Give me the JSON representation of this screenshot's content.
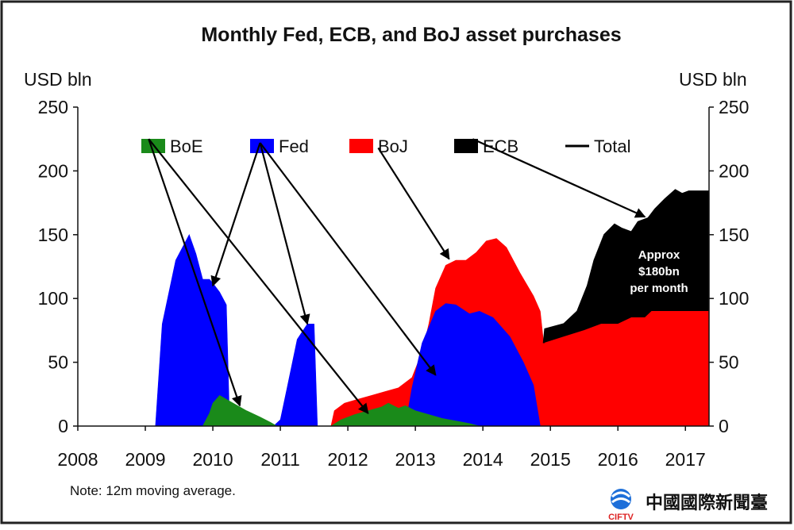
{
  "chart_data": {
    "type": "area",
    "title": "Monthly Fed, ECB, and BoJ asset purchases",
    "ylabel_left": "USD bln",
    "ylabel_right": "USD bln",
    "note": "Note: 12m moving average.",
    "ylim": [
      0,
      250
    ],
    "xlim": [
      2008,
      2017.35
    ],
    "x_ticks": [
      "2008",
      "2009",
      "2010",
      "2011",
      "2012",
      "2013",
      "2014",
      "2015",
      "2016",
      "2017"
    ],
    "y_ticks": [
      "0",
      "50",
      "100",
      "150",
      "200",
      "250"
    ],
    "grid": false,
    "legend_position": "top",
    "legend": [
      {
        "name": "BoE",
        "color": "#1a8a1a",
        "kind": "box"
      },
      {
        "name": "Fed",
        "color": "#0000ff",
        "kind": "box"
      },
      {
        "name": "BoJ",
        "color": "#ff0000",
        "kind": "box"
      },
      {
        "name": "ECB",
        "color": "#000000",
        "kind": "box"
      },
      {
        "name": "Total",
        "color": "#000000",
        "kind": "line"
      }
    ],
    "annotation": [
      "Approx",
      "$180bn",
      "per month"
    ],
    "series": [
      {
        "name": "BoE",
        "color": "#1a8a1a",
        "points": [
          [
            2009.85,
            0
          ],
          [
            2009.95,
            10
          ],
          [
            2010.0,
            18
          ],
          [
            2010.1,
            24
          ],
          [
            2010.3,
            18
          ],
          [
            2010.5,
            12
          ],
          [
            2010.7,
            7
          ],
          [
            2010.85,
            3
          ],
          [
            2010.95,
            0
          ],
          [
            2011.75,
            0
          ],
          [
            2011.9,
            5
          ],
          [
            2012.1,
            9
          ],
          [
            2012.3,
            12
          ],
          [
            2012.5,
            15
          ],
          [
            2012.6,
            18
          ],
          [
            2012.75,
            14
          ],
          [
            2012.85,
            16
          ],
          [
            2013.0,
            12
          ],
          [
            2013.2,
            9
          ],
          [
            2013.4,
            6
          ],
          [
            2013.6,
            4
          ],
          [
            2013.8,
            2
          ],
          [
            2013.95,
            0
          ]
        ]
      },
      {
        "name": "Fed",
        "color": "#0000ff",
        "points": [
          [
            2009.15,
            0
          ],
          [
            2009.25,
            80
          ],
          [
            2009.45,
            130
          ],
          [
            2009.65,
            150
          ],
          [
            2009.75,
            135
          ],
          [
            2009.85,
            115
          ],
          [
            2009.95,
            115
          ],
          [
            2010.0,
            112
          ],
          [
            2010.1,
            105
          ],
          [
            2010.2,
            95
          ],
          [
            2010.25,
            0
          ],
          [
            2010.9,
            0
          ],
          [
            2011.0,
            5
          ],
          [
            2011.1,
            30
          ],
          [
            2011.25,
            68
          ],
          [
            2011.4,
            80
          ],
          [
            2011.5,
            80
          ],
          [
            2011.55,
            0
          ],
          [
            2012.85,
            0
          ],
          [
            2012.95,
            30
          ],
          [
            2013.1,
            65
          ],
          [
            2013.3,
            90
          ],
          [
            2013.45,
            96
          ],
          [
            2013.6,
            95
          ],
          [
            2013.8,
            88
          ],
          [
            2013.95,
            90
          ],
          [
            2014.15,
            85
          ],
          [
            2014.4,
            70
          ],
          [
            2014.6,
            50
          ],
          [
            2014.75,
            32
          ],
          [
            2014.85,
            0
          ]
        ]
      },
      {
        "name": "BoJ",
        "color": "#ff0000",
        "points": [
          [
            2011.75,
            0
          ],
          [
            2011.8,
            12
          ],
          [
            2011.95,
            18
          ],
          [
            2012.15,
            21
          ],
          [
            2012.35,
            24
          ],
          [
            2012.55,
            27
          ],
          [
            2012.75,
            30
          ],
          [
            2012.95,
            38
          ],
          [
            2013.1,
            58
          ],
          [
            2013.2,
            80
          ],
          [
            2013.3,
            108
          ],
          [
            2013.45,
            126
          ],
          [
            2013.6,
            130
          ],
          [
            2013.75,
            130
          ],
          [
            2013.9,
            136
          ],
          [
            2014.05,
            145
          ],
          [
            2014.2,
            147
          ],
          [
            2014.35,
            140
          ],
          [
            2014.55,
            120
          ],
          [
            2014.75,
            102
          ],
          [
            2014.85,
            90
          ],
          [
            2014.9,
            65
          ],
          [
            2015.2,
            70
          ],
          [
            2015.5,
            75
          ],
          [
            2015.75,
            80
          ],
          [
            2015.9,
            80
          ],
          [
            2016.0,
            80
          ],
          [
            2016.2,
            85
          ],
          [
            2016.4,
            85
          ],
          [
            2016.5,
            90
          ],
          [
            2016.8,
            90
          ],
          [
            2017.35,
            90
          ]
        ]
      },
      {
        "name": "ECB",
        "color": "#000000",
        "points": [
          [
            2014.9,
            65
          ],
          [
            2014.92,
            76
          ],
          [
            2015.2,
            80
          ],
          [
            2015.4,
            90
          ],
          [
            2015.55,
            110
          ],
          [
            2015.65,
            130
          ],
          [
            2015.8,
            150
          ],
          [
            2015.95,
            158
          ],
          [
            2016.05,
            155
          ],
          [
            2016.2,
            152
          ],
          [
            2016.3,
            160
          ],
          [
            2016.45,
            163
          ],
          [
            2016.55,
            170
          ],
          [
            2016.7,
            178
          ],
          [
            2016.85,
            185
          ],
          [
            2016.95,
            182
          ],
          [
            2017.05,
            184
          ],
          [
            2017.35,
            184
          ]
        ]
      }
    ],
    "total": [
      [
        2014.9,
        65
      ],
      [
        2014.92,
        76
      ],
      [
        2015.2,
        80
      ],
      [
        2015.4,
        90
      ],
      [
        2015.55,
        110
      ],
      [
        2015.65,
        130
      ],
      [
        2015.8,
        150
      ],
      [
        2015.95,
        158
      ],
      [
        2016.05,
        155
      ],
      [
        2016.2,
        152
      ],
      [
        2016.3,
        160
      ],
      [
        2016.45,
        163
      ],
      [
        2016.55,
        170
      ],
      [
        2016.7,
        178
      ],
      [
        2016.85,
        185
      ],
      [
        2016.95,
        182
      ],
      [
        2017.05,
        184
      ],
      [
        2017.35,
        184
      ]
    ]
  },
  "watermark": {
    "name": "中國國際新聞臺",
    "abbr": "CIFTV"
  }
}
